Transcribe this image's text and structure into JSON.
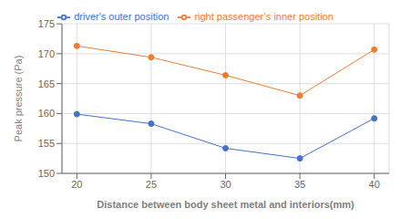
{
  "chart_data": {
    "type": "line",
    "x": [
      20,
      25,
      30,
      35,
      40
    ],
    "series": [
      {
        "name": "driver's outer position",
        "color": "#4472C4",
        "values": [
          159.9,
          158.3,
          154.2,
          152.5,
          159.2
        ],
        "marker": "circle"
      },
      {
        "name": "right passenger’s inner position",
        "color": "#ED7D31",
        "values": [
          171.3,
          169.4,
          166.4,
          163.0,
          170.7
        ],
        "marker": "circle"
      }
    ],
    "xlabel": "Distance between body sheet metal and interiors(mm)",
    "ylabel": "Peak pressure (Pa)",
    "xlim": [
      19,
      41
    ],
    "xticks": [
      20,
      25,
      30,
      35,
      40
    ],
    "ylim": [
      150,
      175
    ],
    "yticks": [
      150,
      155,
      160,
      165,
      170,
      175
    ],
    "grid": true,
    "legend": "top"
  }
}
